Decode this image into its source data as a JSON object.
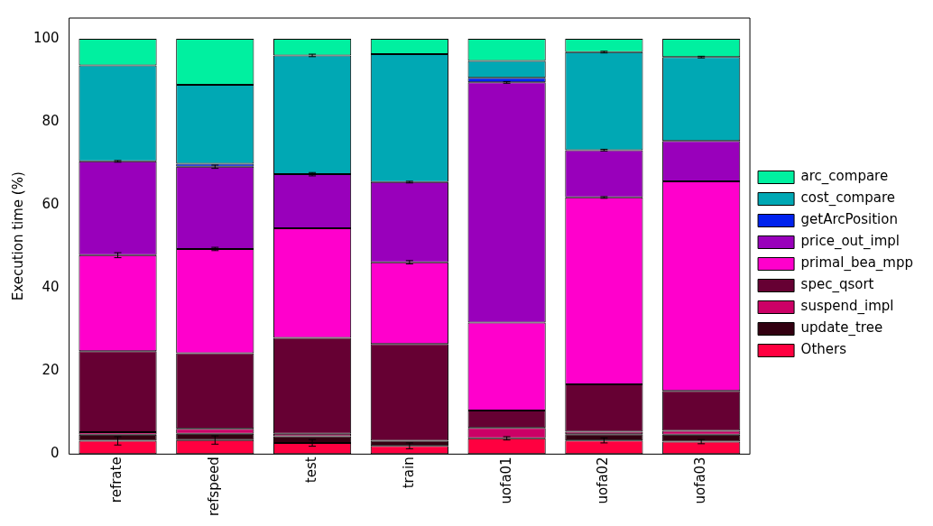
{
  "chart_data": {
    "type": "bar",
    "stacked": true,
    "ylabel": "Execution time (%)",
    "categories": [
      "refrate",
      "refspeed",
      "test",
      "train",
      "uofa01",
      "uofa02",
      "uofa03"
    ],
    "ylim": [
      0,
      105
    ],
    "yticks": [
      0,
      20,
      40,
      60,
      80,
      100
    ],
    "grid": false,
    "legend": "right",
    "series": [
      {
        "name": "Others",
        "color": "#ff0040",
        "values": [
          3.2,
          3.4,
          2.7,
          2.0,
          3.8,
          3.3,
          3.0
        ],
        "errors": [
          1.0,
          1.0,
          0.8,
          0.7,
          0.4,
          0.6,
          0.5
        ]
      },
      {
        "name": "update_tree",
        "color": "#330011",
        "values": [
          1.5,
          1.5,
          1.6,
          1.2,
          null,
          1.5,
          1.7
        ]
      },
      {
        "name": "suspend_impl",
        "color": "#cc0066",
        "values": [
          0.6,
          1.2,
          0.6,
          null,
          2.5,
          0.6,
          0.9
        ]
      },
      {
        "name": "spec_qsort",
        "color": "#660033",
        "values": [
          19.5,
          18.2,
          23.1,
          23.3,
          4.2,
          11.4,
          9.6
        ]
      },
      {
        "name": "primal_bea_mpp",
        "color": "#ff00cc",
        "values": [
          23.1,
          25.1,
          26.4,
          19.7,
          21.2,
          45.0,
          50.5
        ],
        "errors": [
          0.6,
          0.4,
          null,
          0.4,
          null,
          0.2,
          null
        ]
      },
      {
        "name": "price_out_impl",
        "color": "#9900bb",
        "values": [
          22.6,
          19.8,
          13.0,
          19.3,
          57.8,
          11.4,
          9.7
        ],
        "errors": [
          0.2,
          0.4,
          0.4,
          0.2,
          0.2,
          0.2,
          null
        ]
      },
      {
        "name": "getArcPosition",
        "color": "#0022ee",
        "values": [
          null,
          0.7,
          null,
          null,
          1.1,
          null,
          null
        ]
      },
      {
        "name": "cost_compare",
        "color": "#00a8b4",
        "values": [
          23.1,
          19.0,
          28.6,
          30.8,
          4.1,
          23.6,
          20.2
        ],
        "errors": [
          null,
          null,
          0.3,
          null,
          null,
          0.2,
          0.2
        ]
      },
      {
        "name": "arc_compare",
        "color": "#00f0a0",
        "values": [
          6.4,
          11.1,
          4.0,
          3.7,
          5.3,
          3.2,
          4.4
        ]
      }
    ]
  }
}
